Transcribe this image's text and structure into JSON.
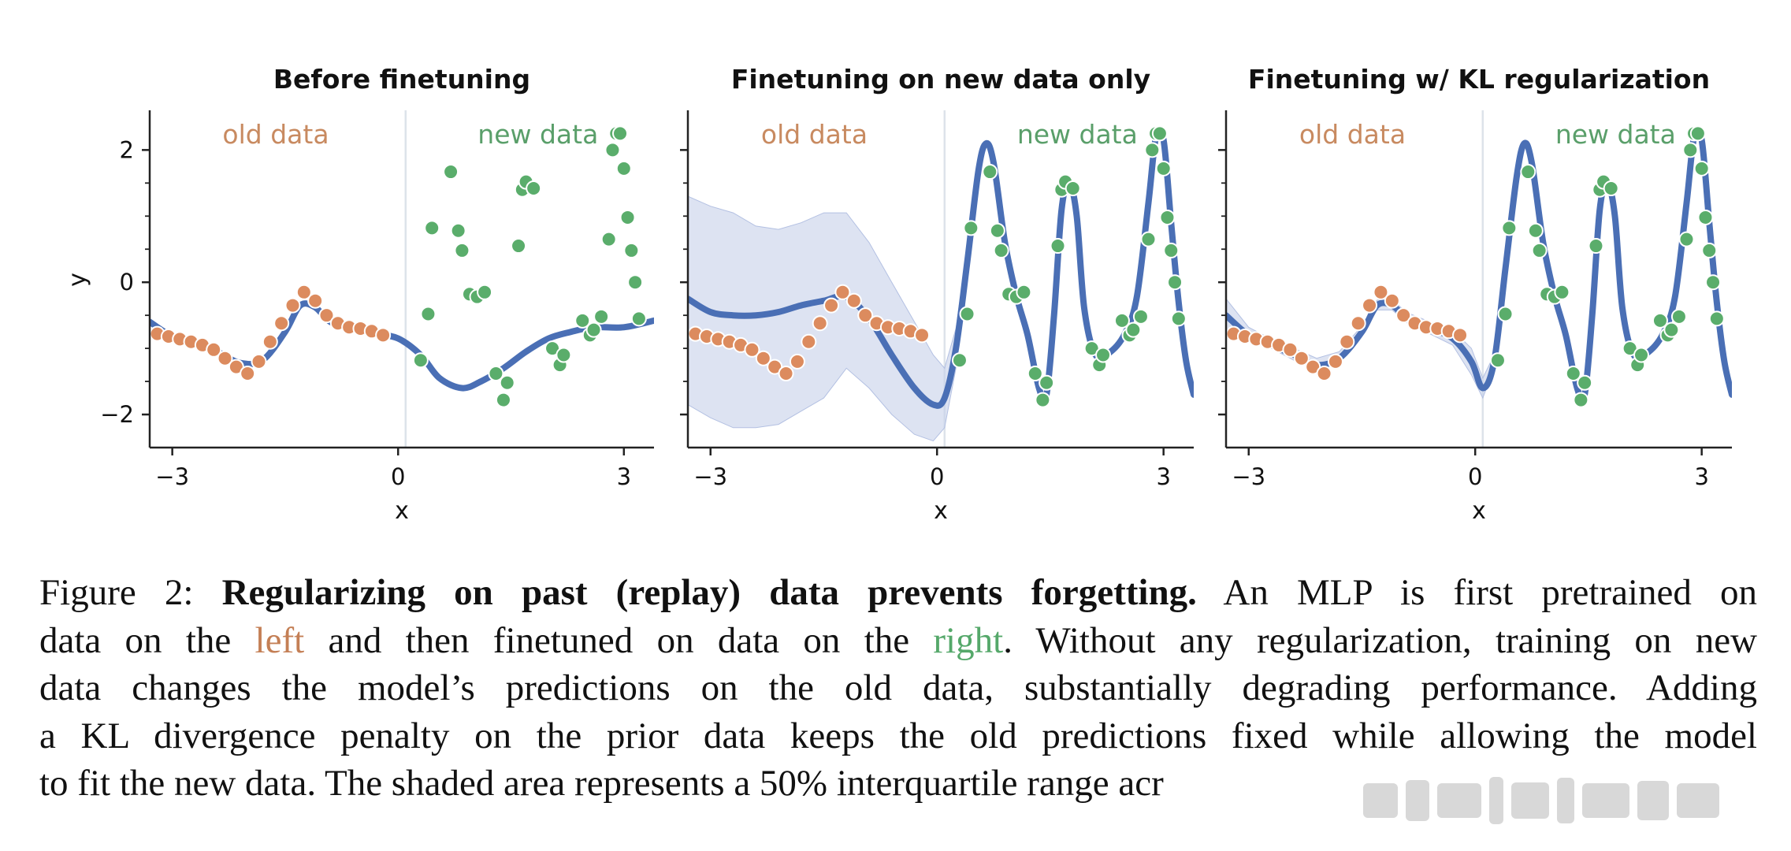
{
  "figure": {
    "x_tick_labels": [
      "−3",
      "0",
      "3"
    ],
    "y_tick_labels": [
      "2",
      "0",
      "−2"
    ],
    "xlabel": "x",
    "ylabel": "y",
    "region_labels": {
      "old": "old data",
      "new": "new data"
    },
    "colors": {
      "old": "#dc8b5e",
      "new": "#5aad6b",
      "line": "#4a6fb5",
      "band": "#c7d1ea",
      "divider": "#dde3ea"
    }
  },
  "chart_data": [
    {
      "type": "line",
      "title": "Before finetuning",
      "xlabel": "x",
      "ylabel": "y",
      "xlim": [
        -3.3,
        3.4
      ],
      "ylim": [
        -2.5,
        2.6
      ],
      "divider_x": 0.1,
      "old_data": {
        "x": [
          -3.2,
          -3.05,
          -2.9,
          -2.75,
          -2.6,
          -2.45,
          -2.3,
          -2.15,
          -2.0,
          -1.85,
          -1.7,
          -1.55,
          -1.4,
          -1.25,
          -1.1,
          -0.95,
          -0.8,
          -0.65,
          -0.5,
          -0.35,
          -0.2
        ],
        "y": [
          -0.78,
          -0.82,
          -0.86,
          -0.9,
          -0.95,
          -1.02,
          -1.15,
          -1.28,
          -1.38,
          -1.2,
          -0.9,
          -0.62,
          -0.35,
          -0.15,
          -0.28,
          -0.5,
          -0.62,
          -0.68,
          -0.7,
          -0.74,
          -0.8
        ]
      },
      "new_data": {
        "x": [
          0.3,
          0.4,
          0.45,
          0.7,
          0.8,
          0.85,
          0.95,
          1.05,
          1.15,
          1.3,
          1.4,
          1.45,
          1.6,
          1.65,
          1.7,
          1.8,
          2.05,
          2.15,
          2.2,
          2.45,
          2.55,
          2.6,
          2.7,
          2.8,
          2.85,
          2.9,
          2.95,
          3.0,
          3.05,
          3.1,
          3.15,
          3.2
        ],
        "y": [
          -1.18,
          -0.48,
          0.82,
          1.67,
          0.78,
          0.48,
          -0.18,
          -0.22,
          -0.15,
          -1.38,
          -1.78,
          -1.52,
          0.55,
          1.4,
          1.52,
          1.42,
          -1.0,
          -1.25,
          -1.1,
          -0.58,
          -0.8,
          -0.72,
          -0.52,
          0.65,
          2.0,
          2.25,
          2.25,
          1.72,
          0.98,
          0.48,
          0.0,
          -0.55
        ]
      },
      "fit": {
        "x": [
          -3.3,
          -3.0,
          -2.7,
          -2.4,
          -2.1,
          -1.8,
          -1.5,
          -1.3,
          -1.1,
          -0.9,
          -0.6,
          -0.3,
          0.0,
          0.3,
          0.55,
          0.85,
          1.1,
          1.4,
          1.7,
          2.0,
          2.3,
          2.6,
          3.0,
          3.4
        ],
        "y": [
          -0.6,
          -0.82,
          -0.92,
          -1.05,
          -1.22,
          -1.18,
          -0.75,
          -0.35,
          -0.38,
          -0.6,
          -0.7,
          -0.78,
          -0.85,
          -1.1,
          -1.45,
          -1.6,
          -1.5,
          -1.3,
          -1.05,
          -0.85,
          -0.75,
          -0.68,
          -0.68,
          -0.58
        ]
      }
    },
    {
      "type": "line",
      "title": "Finetuning on new data only",
      "xlabel": "x",
      "ylabel": "",
      "xlim": [
        -3.3,
        3.4
      ],
      "ylim": [
        -2.5,
        2.6
      ],
      "divider_x": 0.1,
      "old_data": {
        "x": [
          -3.2,
          -3.05,
          -2.9,
          -2.75,
          -2.6,
          -2.45,
          -2.3,
          -2.15,
          -2.0,
          -1.85,
          -1.7,
          -1.55,
          -1.4,
          -1.25,
          -1.1,
          -0.95,
          -0.8,
          -0.65,
          -0.5,
          -0.35,
          -0.2
        ],
        "y": [
          -0.78,
          -0.82,
          -0.86,
          -0.9,
          -0.95,
          -1.02,
          -1.15,
          -1.28,
          -1.38,
          -1.2,
          -0.9,
          -0.62,
          -0.35,
          -0.15,
          -0.28,
          -0.5,
          -0.62,
          -0.68,
          -0.7,
          -0.74,
          -0.8
        ]
      },
      "new_data": {
        "x": [
          0.3,
          0.4,
          0.45,
          0.7,
          0.8,
          0.85,
          0.95,
          1.05,
          1.15,
          1.3,
          1.4,
          1.45,
          1.6,
          1.65,
          1.7,
          1.8,
          2.05,
          2.15,
          2.2,
          2.45,
          2.55,
          2.6,
          2.7,
          2.8,
          2.85,
          2.9,
          2.95,
          3.0,
          3.05,
          3.1,
          3.15,
          3.2
        ],
        "y": [
          -1.18,
          -0.48,
          0.82,
          1.67,
          0.78,
          0.48,
          -0.18,
          -0.22,
          -0.15,
          -1.38,
          -1.78,
          -1.52,
          0.55,
          1.4,
          1.52,
          1.42,
          -1.0,
          -1.25,
          -1.1,
          -0.58,
          -0.8,
          -0.72,
          -0.52,
          0.65,
          2.0,
          2.25,
          2.25,
          1.72,
          0.98,
          0.48,
          0.0,
          -0.55
        ]
      },
      "fit": {
        "x": [
          -3.3,
          -3.0,
          -2.7,
          -2.4,
          -2.1,
          -1.8,
          -1.5,
          -1.2,
          -0.9,
          -0.6,
          -0.3,
          -0.05,
          0.1,
          0.25,
          0.4,
          0.55,
          0.65,
          0.75,
          0.9,
          1.05,
          1.2,
          1.35,
          1.45,
          1.55,
          1.65,
          1.75,
          1.85,
          1.95,
          2.1,
          2.3,
          2.5,
          2.65,
          2.8,
          2.9,
          3.0,
          3.1,
          3.2,
          3.3,
          3.4
        ],
        "y": [
          -0.25,
          -0.45,
          -0.5,
          -0.5,
          -0.45,
          -0.35,
          -0.28,
          -0.22,
          -0.55,
          -1.1,
          -1.6,
          -1.85,
          -1.75,
          -1.0,
          0.3,
          1.7,
          2.1,
          1.8,
          0.6,
          -0.2,
          -0.8,
          -1.6,
          -1.7,
          -0.5,
          1.1,
          1.5,
          1.0,
          -0.4,
          -1.1,
          -1.05,
          -0.75,
          -0.2,
          1.2,
          2.2,
          2.15,
          0.9,
          -0.3,
          -1.2,
          -1.7
        ]
      },
      "band": {
        "x": [
          -3.3,
          -3.0,
          -2.7,
          -2.4,
          -2.1,
          -1.8,
          -1.5,
          -1.2,
          -0.9,
          -0.6,
          -0.3,
          -0.05,
          0.1,
          0.25,
          0.4
        ],
        "lower": [
          -1.85,
          -2.05,
          -2.2,
          -2.2,
          -2.15,
          -1.95,
          -1.75,
          -1.3,
          -1.6,
          -2.0,
          -2.3,
          -2.4,
          -2.2,
          -1.3,
          0.1
        ],
        "upper": [
          1.3,
          1.15,
          1.05,
          0.85,
          0.8,
          0.9,
          1.05,
          1.05,
          0.6,
          0.0,
          -0.6,
          -1.1,
          -1.3,
          -0.7,
          0.5
        ]
      }
    },
    {
      "type": "line",
      "title": "Finetuning w/ KL regularization",
      "xlabel": "x",
      "ylabel": "",
      "xlim": [
        -3.3,
        3.4
      ],
      "ylim": [
        -2.5,
        2.6
      ],
      "divider_x": 0.1,
      "old_data": {
        "x": [
          -3.2,
          -3.05,
          -2.9,
          -2.75,
          -2.6,
          -2.45,
          -2.3,
          -2.15,
          -2.0,
          -1.85,
          -1.7,
          -1.55,
          -1.4,
          -1.25,
          -1.1,
          -0.95,
          -0.8,
          -0.65,
          -0.5,
          -0.35,
          -0.2
        ],
        "y": [
          -0.78,
          -0.82,
          -0.86,
          -0.9,
          -0.95,
          -1.02,
          -1.15,
          -1.28,
          -1.38,
          -1.2,
          -0.9,
          -0.62,
          -0.35,
          -0.15,
          -0.28,
          -0.5,
          -0.62,
          -0.68,
          -0.7,
          -0.74,
          -0.8
        ]
      },
      "new_data": {
        "x": [
          0.3,
          0.4,
          0.45,
          0.7,
          0.8,
          0.85,
          0.95,
          1.05,
          1.15,
          1.3,
          1.4,
          1.45,
          1.6,
          1.65,
          1.7,
          1.8,
          2.05,
          2.15,
          2.2,
          2.45,
          2.55,
          2.6,
          2.7,
          2.8,
          2.85,
          2.9,
          2.95,
          3.0,
          3.05,
          3.1,
          3.15,
          3.2
        ],
        "y": [
          -1.18,
          -0.48,
          0.82,
          1.67,
          0.78,
          0.48,
          -0.18,
          -0.22,
          -0.15,
          -1.38,
          -1.78,
          -1.52,
          0.55,
          1.4,
          1.52,
          1.42,
          -1.0,
          -1.25,
          -1.1,
          -0.58,
          -0.8,
          -0.72,
          -0.52,
          0.65,
          2.0,
          2.25,
          2.25,
          1.72,
          0.98,
          0.48,
          0.0,
          -0.55
        ]
      },
      "fit": {
        "x": [
          -3.3,
          -3.0,
          -2.7,
          -2.4,
          -2.1,
          -1.8,
          -1.5,
          -1.3,
          -1.1,
          -0.9,
          -0.6,
          -0.3,
          -0.05,
          0.1,
          0.25,
          0.4,
          0.55,
          0.65,
          0.75,
          0.9,
          1.05,
          1.2,
          1.35,
          1.45,
          1.55,
          1.65,
          1.75,
          1.85,
          1.95,
          2.1,
          2.3,
          2.5,
          2.65,
          2.8,
          2.9,
          3.0,
          3.1,
          3.2,
          3.3,
          3.4
        ],
        "y": [
          -0.5,
          -0.8,
          -0.95,
          -1.1,
          -1.25,
          -1.15,
          -0.75,
          -0.35,
          -0.35,
          -0.55,
          -0.7,
          -0.85,
          -1.2,
          -1.6,
          -1.2,
          0.2,
          1.6,
          2.1,
          1.8,
          0.6,
          -0.2,
          -0.8,
          -1.6,
          -1.7,
          -0.5,
          1.1,
          1.5,
          1.0,
          -0.4,
          -1.1,
          -1.05,
          -0.75,
          -0.2,
          1.2,
          2.2,
          2.15,
          0.9,
          -0.3,
          -1.2,
          -1.7
        ]
      },
      "band": {
        "x": [
          -3.3,
          -3.0,
          -2.7,
          -2.4,
          -2.1,
          -1.8,
          -1.5,
          -1.3,
          -1.1,
          -0.9,
          -0.6,
          -0.3,
          -0.05,
          0.1,
          0.25
        ],
        "lower": [
          -0.7,
          -0.9,
          -1.0,
          -1.18,
          -1.32,
          -1.22,
          -0.82,
          -0.42,
          -0.42,
          -0.62,
          -0.78,
          -0.95,
          -1.4,
          -1.75,
          -1.3
        ],
        "upper": [
          -0.25,
          -0.68,
          -0.86,
          -1.0,
          -1.15,
          -1.05,
          -0.66,
          -0.27,
          -0.27,
          -0.46,
          -0.6,
          -0.72,
          -1.0,
          -1.45,
          -1.1
        ]
      }
    }
  ],
  "caption": {
    "lines": [
      {
        "justify": true,
        "parts": [
          {
            "text": "Figure 2:  ",
            "style": "plain"
          },
          {
            "text": "Regularizing on past (replay) data prevents forgetting.",
            "style": "bold"
          },
          {
            "text": " An MLP is first pretrained on",
            "style": "plain"
          }
        ]
      },
      {
        "justify": true,
        "parts": [
          {
            "text": "data on the ",
            "style": "plain"
          },
          {
            "text": "left",
            "style": "left"
          },
          {
            "text": " and then finetuned on data on the ",
            "style": "plain"
          },
          {
            "text": "right",
            "style": "right"
          },
          {
            "text": ". Without any regularization, training on new",
            "style": "plain"
          }
        ]
      },
      {
        "justify": true,
        "parts": [
          {
            "text": "data changes the model’s predictions on the old data, substantially degrading performance. Adding",
            "style": "plain"
          }
        ]
      },
      {
        "justify": true,
        "parts": [
          {
            "text": "a KL divergence penalty on the prior data keeps the old predictions fixed while allowing the model",
            "style": "plain"
          }
        ]
      },
      {
        "justify": false,
        "parts": [
          {
            "text": "to fit the new data. The shaded area represents a 50% interquartile range acr",
            "style": "plain"
          }
        ]
      }
    ]
  }
}
